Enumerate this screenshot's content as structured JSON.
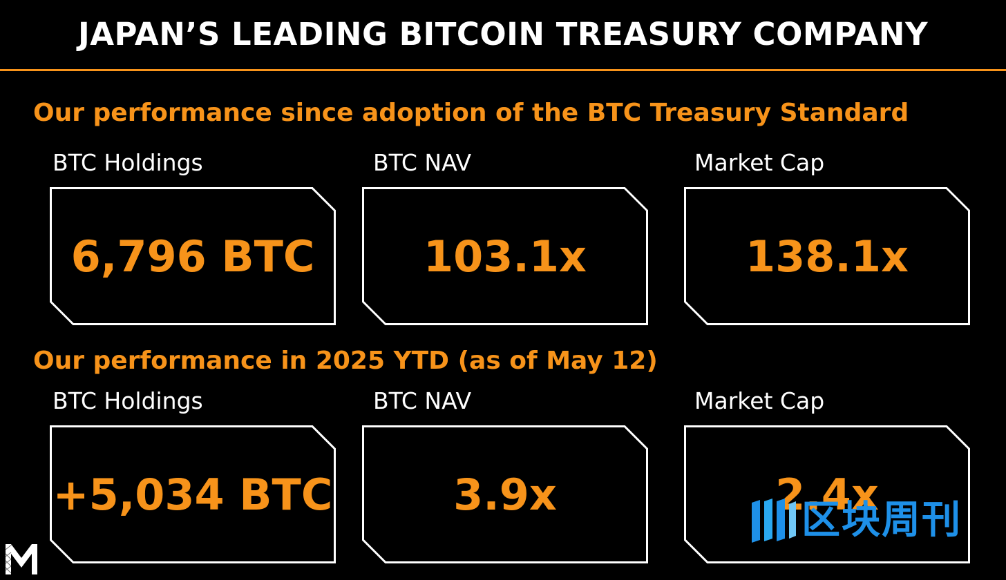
{
  "header": {
    "title": "JAPAN’S LEADING BITCOIN TREASURY COMPANY"
  },
  "sections": [
    {
      "heading": "Our performance since adoption of the BTC Treasury Standard",
      "metrics": [
        {
          "label": "BTC Holdings",
          "value": "6,796 BTC"
        },
        {
          "label": "BTC NAV",
          "value": "103.1x"
        },
        {
          "label": "Market Cap",
          "value": "138.1x"
        }
      ]
    },
    {
      "heading": "Our performance in 2025 YTD (as of May 12)",
      "metrics": [
        {
          "label": "BTC Holdings",
          "value": "+5,034 BTC"
        },
        {
          "label": "BTC NAV",
          "value": "3.9x"
        },
        {
          "label": "Market Cap",
          "value": "2.4x"
        }
      ]
    }
  ],
  "watermark": {
    "text": "区块周刊",
    "icon": "blockweekly-logo-icon"
  },
  "logo": {
    "icon": "m-logo-icon"
  },
  "colors": {
    "background": "#000000",
    "accent": "#F7931A",
    "text": "#FFFFFF",
    "card_border": "#FFFFFF",
    "watermark": "#1E90E8"
  }
}
